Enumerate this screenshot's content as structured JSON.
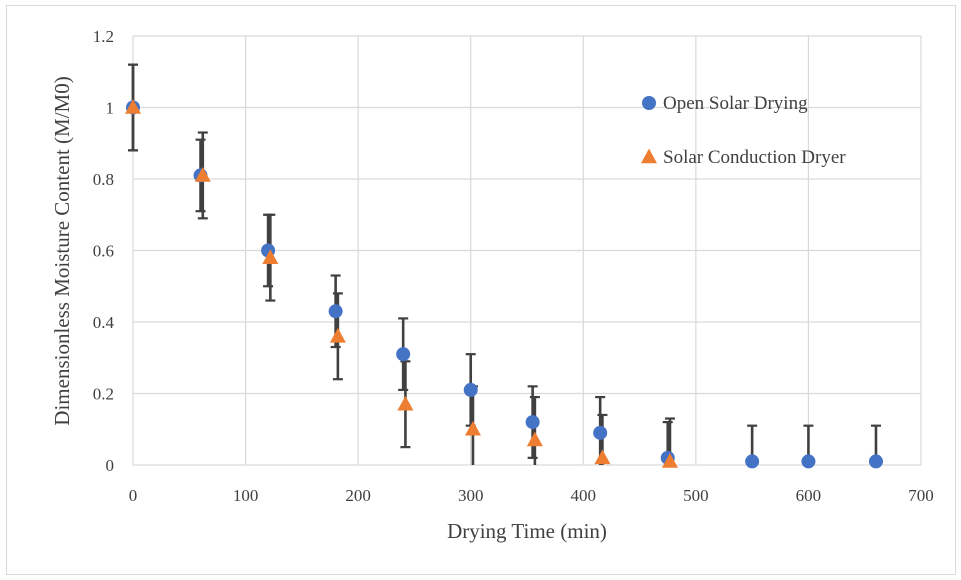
{
  "chart_data": {
    "type": "scatter",
    "title": "",
    "xlabel": "Drying Time (min)",
    "ylabel": "Dimensionless Moisture Content (M/M0)",
    "xlim": [
      0,
      700
    ],
    "ylim": [
      0,
      1.2
    ],
    "x_ticks": [
      0,
      100,
      200,
      300,
      400,
      500,
      600,
      700
    ],
    "y_ticks": [
      0,
      0.2,
      0.4,
      0.6,
      0.8,
      1,
      1.2
    ],
    "x_tick_labels": [
      "0",
      "100",
      "200",
      "300",
      "400",
      "500",
      "600",
      "700"
    ],
    "y_tick_labels": [
      "0",
      "0.2",
      "0.4",
      "0.6",
      "0.8",
      "1",
      "1.2"
    ],
    "grid": true,
    "legend_position": "top-right",
    "series": [
      {
        "name": "Open Solar Drying",
        "marker": "circle",
        "color": "#4472C4",
        "x": [
          0,
          60,
          120,
          180,
          240,
          300,
          355,
          415,
          475,
          550,
          600,
          660
        ],
        "y": [
          1.0,
          0.81,
          0.6,
          0.43,
          0.31,
          0.21,
          0.12,
          0.09,
          0.02,
          0.01,
          0.01,
          0.01
        ],
        "error": [
          0.12,
          0.1,
          0.1,
          0.1,
          0.1,
          0.1,
          0.1,
          0.1,
          0.1,
          0.1,
          0.1,
          0.1
        ]
      },
      {
        "name": "Solar Conduction Dryer",
        "marker": "triangle",
        "color": "#ED7D31",
        "x": [
          0,
          62,
          122,
          182,
          242,
          302,
          357,
          417,
          477
        ],
        "y": [
          1.0,
          0.81,
          0.58,
          0.36,
          0.17,
          0.1,
          0.07,
          0.02,
          0.01
        ],
        "error": [
          0.12,
          0.12,
          0.12,
          0.12,
          0.12,
          0.12,
          0.12,
          0.12,
          0.12
        ]
      }
    ]
  }
}
